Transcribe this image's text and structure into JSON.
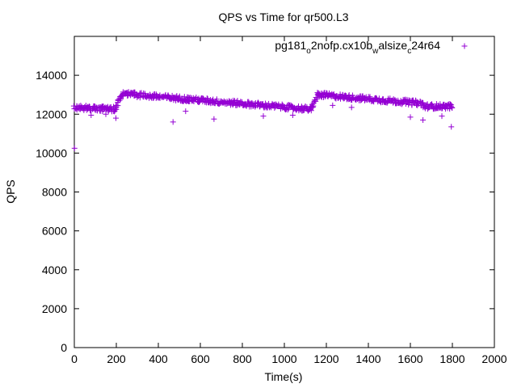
{
  "chart_data": {
    "type": "scatter",
    "title": "QPS vs Time for qr500.L3",
    "xlabel": "Time(s)",
    "ylabel": "QPS",
    "xlim": [
      0,
      2000
    ],
    "ylim": [
      0,
      16000
    ],
    "xticks": [
      0,
      200,
      400,
      600,
      800,
      1000,
      1200,
      1400,
      1600,
      1800,
      2000
    ],
    "yticks": [
      0,
      2000,
      4000,
      6000,
      8000,
      10000,
      12000,
      14000
    ],
    "xtick_labels": [
      "0",
      "200",
      "400",
      "600",
      "800",
      "1000",
      "1200",
      "1400",
      "1600",
      "1800",
      "2000"
    ],
    "ytick_labels": [
      "0",
      "2000",
      "4000",
      "6000",
      "8000",
      "10000",
      "12000",
      "14000"
    ],
    "grid": false,
    "legend_position": "top-right",
    "legend": {
      "main": "pg181",
      "sub1": "o",
      "mid1": "2nofp.cx10b",
      "sub2": "w",
      "mid2": "alsize",
      "sub3": "c",
      "tail": "24r64"
    },
    "series": [
      {
        "name": "pg181_o2nofp.cx10b_walsize_c24r64",
        "color": "#9400d3",
        "marker": "+",
        "segments": [
          {
            "x_start": 0,
            "x_end": 200,
            "y_start": 12350,
            "y_end": 12250
          },
          {
            "x_start": 200,
            "x_end": 230,
            "y_start": 12400,
            "y_end": 13050
          },
          {
            "x_start": 230,
            "x_end": 1130,
            "y_start": 13050,
            "y_end": 12250
          },
          {
            "x_start": 1130,
            "x_end": 1160,
            "y_start": 12300,
            "y_end": 13000
          },
          {
            "x_start": 1160,
            "x_end": 1660,
            "y_start": 13000,
            "y_end": 12550
          },
          {
            "x_start": 1660,
            "x_end": 1800,
            "y_start": 12400,
            "y_end": 12400
          }
        ],
        "outliers": [
          {
            "x": 1,
            "y": 10250
          },
          {
            "x": 80,
            "y": 11950
          },
          {
            "x": 150,
            "y": 12000
          },
          {
            "x": 198,
            "y": 11800
          },
          {
            "x": 470,
            "y": 11600
          },
          {
            "x": 530,
            "y": 12150
          },
          {
            "x": 665,
            "y": 11750
          },
          {
            "x": 900,
            "y": 11900
          },
          {
            "x": 1040,
            "y": 11950
          },
          {
            "x": 1230,
            "y": 12450
          },
          {
            "x": 1320,
            "y": 12350
          },
          {
            "x": 1600,
            "y": 11850
          },
          {
            "x": 1660,
            "y": 11700
          },
          {
            "x": 1750,
            "y": 11900
          },
          {
            "x": 1795,
            "y": 11350
          }
        ]
      }
    ]
  }
}
